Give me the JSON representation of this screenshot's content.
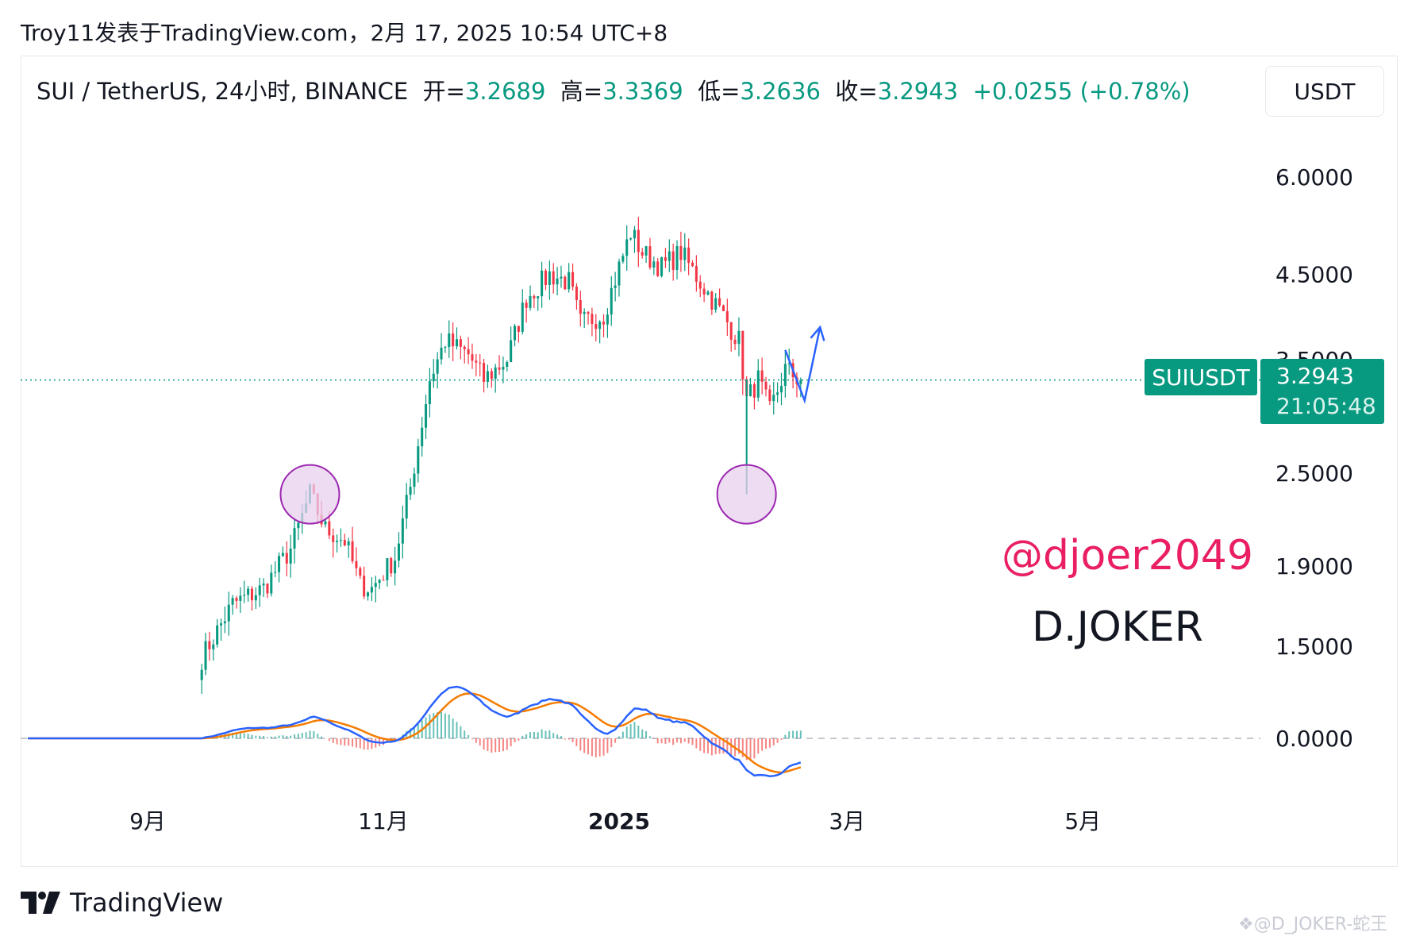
{
  "header": {
    "caption": "Troy11发表于TradingView.com，2月 17, 2025 10:54 UTC+8"
  },
  "legend": {
    "symbol": "SUI / TetherUS, 24小时, BINANCE",
    "open_label": "开=",
    "open": "3.2689",
    "high_label": "高=",
    "high": "3.3369",
    "low_label": "低=",
    "low": "3.2636",
    "close_label": "收=",
    "close": "3.2943",
    "change": "+0.0255 (+0.78%)"
  },
  "unit_button": "USDT",
  "price_tag": {
    "symbol": "SUIUSDT",
    "price": "3.2943",
    "countdown": "21:05:48"
  },
  "watermarks": {
    "handle": "@djoer2049",
    "name": "D.JOKER",
    "footer": "❖@D_JOKER-蛇王"
  },
  "brand": {
    "logo_text": "TradingView"
  },
  "colors": {
    "up": "#089981",
    "down": "#f23645",
    "macd": "#2962ff",
    "signal": "#f57c00",
    "circle_fill": "#e8d0ef",
    "circle_stroke": "#9c27b0",
    "projection": "#2962ff"
  },
  "chart_data": {
    "type": "candlestick",
    "price_axis": {
      "scale": "log",
      "ticks": [
        "6.0000",
        "4.5000",
        "3.5000",
        "2.5000",
        "1.9000",
        "1.5000"
      ]
    },
    "macd_axis": {
      "ticks": [
        "0.0000"
      ]
    },
    "time_axis": {
      "ticks": [
        "9月",
        "11月",
        "2025",
        "3月",
        "5月"
      ],
      "bold": [
        "2025"
      ]
    },
    "last_price": 3.2943,
    "anchors": [
      {
        "date": "2024-09-15",
        "price": 1.45
      },
      {
        "date": "2024-09-23",
        "price": 1.7
      },
      {
        "date": "2024-10-01",
        "price": 1.78
      },
      {
        "date": "2024-10-08",
        "price": 2.0
      },
      {
        "date": "2024-10-13",
        "price": 2.35
      },
      {
        "date": "2024-10-17",
        "price": 2.12
      },
      {
        "date": "2024-10-22",
        "price": 2.05
      },
      {
        "date": "2024-10-26",
        "price": 1.8
      },
      {
        "date": "2024-10-29",
        "price": 1.78
      },
      {
        "date": "2024-11-04",
        "price": 1.95
      },
      {
        "date": "2024-11-08",
        "price": 2.4
      },
      {
        "date": "2024-11-13",
        "price": 3.3
      },
      {
        "date": "2024-11-17",
        "price": 3.7
      },
      {
        "date": "2024-11-23",
        "price": 3.55
      },
      {
        "date": "2024-11-27",
        "price": 3.3
      },
      {
        "date": "2024-12-03",
        "price": 3.5
      },
      {
        "date": "2024-12-08",
        "price": 4.2
      },
      {
        "date": "2024-12-14",
        "price": 4.5
      },
      {
        "date": "2024-12-19",
        "price": 4.4
      },
      {
        "date": "2024-12-22",
        "price": 3.9
      },
      {
        "date": "2024-12-28",
        "price": 4.0
      },
      {
        "date": "2025-01-04",
        "price": 5.1
      },
      {
        "date": "2025-01-07",
        "price": 4.8
      },
      {
        "date": "2025-01-12",
        "price": 4.6
      },
      {
        "date": "2025-01-17",
        "price": 4.8
      },
      {
        "date": "2025-01-22",
        "price": 4.4
      },
      {
        "date": "2025-01-27",
        "price": 4.05
      },
      {
        "date": "2025-02-01",
        "price": 3.7
      },
      {
        "date": "2025-02-03",
        "price": 3.1
      },
      {
        "date": "2025-02-06",
        "price": 3.3
      },
      {
        "date": "2025-02-09",
        "price": 3.0
      },
      {
        "date": "2025-02-13",
        "price": 3.4
      },
      {
        "date": "2025-02-17",
        "price": 3.29
      }
    ],
    "volume_notes": "daily OHLC candles interpolated between anchor closes",
    "annotations": [
      {
        "type": "circle",
        "date": "2024-10-13",
        "price": 2.35
      },
      {
        "type": "circle",
        "date": "2025-02-03",
        "price": 2.35
      },
      {
        "type": "projection",
        "points": [
          {
            "date": "2025-02-13",
            "price": 3.6
          },
          {
            "date": "2025-02-18",
            "price": 3.1
          },
          {
            "date": "2025-02-22",
            "price": 3.85
          }
        ]
      }
    ]
  }
}
